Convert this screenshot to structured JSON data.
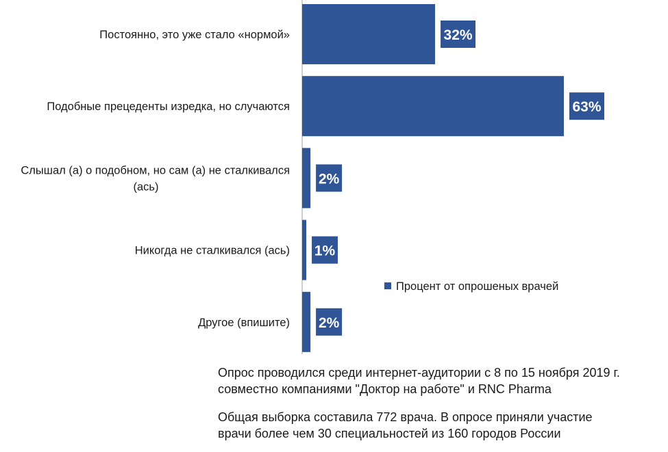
{
  "chart_data": {
    "type": "bar",
    "orientation": "horizontal",
    "categories": [
      [
        "Постоянно, это уже стало «нормой»"
      ],
      [
        "Подобные прецеденты изредка, но случаются"
      ],
      [
        "Слышал (а) о подобном, но сам (а) не сталкивался",
        "(ась)"
      ],
      [
        "Никогда не сталкивался (ась)"
      ],
      [
        "Другое (впишите)"
      ]
    ],
    "series": [
      {
        "name": "Процент от опрошеных врачей",
        "values": [
          32,
          63,
          2,
          1,
          2
        ]
      }
    ],
    "data_labels": [
      "32%",
      "63%",
      "2%",
      "1%",
      "2%"
    ],
    "xlim": [
      0,
      100
    ],
    "grid": false,
    "legend_position": "right",
    "colors": {
      "bar": "#2f5597",
      "label_bg": "#2f5597",
      "label_text": "#ffffff",
      "axis": "#bfbfbf"
    }
  },
  "notes": [
    [
      "Опрос проводился среди интернет-аудитории  с 8 по 15 ноября 2019 г.",
      "совместно компаниями \"Доктор на работе\" и RNC Pharma"
    ],
    [
      "Общая выборка составила 772 врача. В опросе приняли участие",
      "врачи более чем 30 специальностей из 160 городов России"
    ]
  ]
}
